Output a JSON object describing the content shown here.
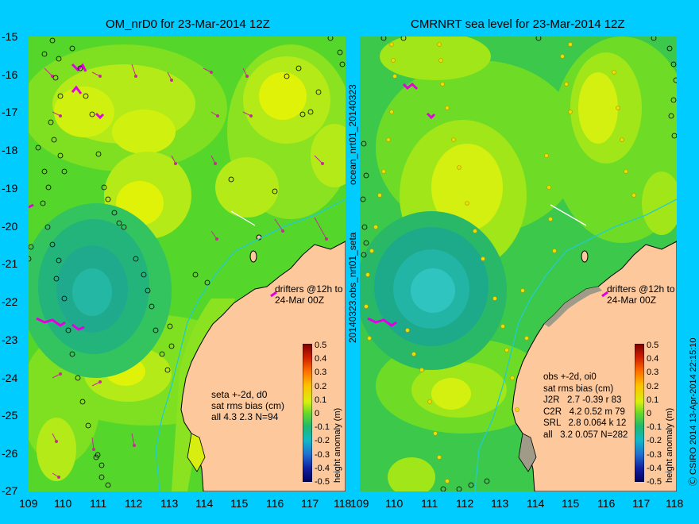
{
  "left_panel": {
    "title": "OM_nrD0 for 23-Mar-2014 12Z",
    "drifter_note": [
      "drifters @12h to",
      "24-Mar 00Z"
    ],
    "stats_lines": [
      "seta +-2d, d0",
      "sat rms bias (cm)",
      "all 4.3 2.3 N=94"
    ]
  },
  "right_panel": {
    "title": "CMRNRT sea level  for 23-Mar-2014 12Z",
    "drifter_note": [
      "drifters @12h to",
      "24-Mar 00Z"
    ],
    "stats_lines": [
      "obs +-2d, oi0",
      "sat rms bias (cm)",
      "J2R   2.7 -0.39 r 83",
      "C2R   4.2 0.52 m 79",
      "SRL   2.8 0.064 k 12",
      "all   3.2 0.057 N=282"
    ]
  },
  "gutter_labels": {
    "upper": "ocean_nrt01_20140323",
    "lower": "20140323.obs_nrt01_seta"
  },
  "credit": "Ⓒ CSIRO 2014   13-Apr-2014 22:15:10",
  "axes": {
    "lat_ticks": [
      "-15",
      "-16",
      "-17",
      "-18",
      "-19",
      "-20",
      "-21",
      "-22",
      "-23",
      "-24",
      "-25",
      "-26",
      "-27"
    ],
    "lon_ticks": [
      "109",
      "110",
      "111",
      "112",
      "113",
      "114",
      "115",
      "116",
      "117",
      "118"
    ]
  },
  "colorbar": {
    "label": "height anomaly (m)",
    "ticks": [
      "0.5",
      "0.4",
      "0.3",
      "0.2",
      "0.1",
      "0",
      "-0.1",
      "-0.2",
      "-0.3",
      "-0.4",
      "-0.5"
    ]
  },
  "colors": {
    "background": "#00ccff",
    "land": "#fcc89c",
    "field_base": "#55d62b",
    "field_high": "#c8ee18",
    "field_low": "#1eb882",
    "drifter": "#e000e0",
    "vector": "#c03090"
  }
}
